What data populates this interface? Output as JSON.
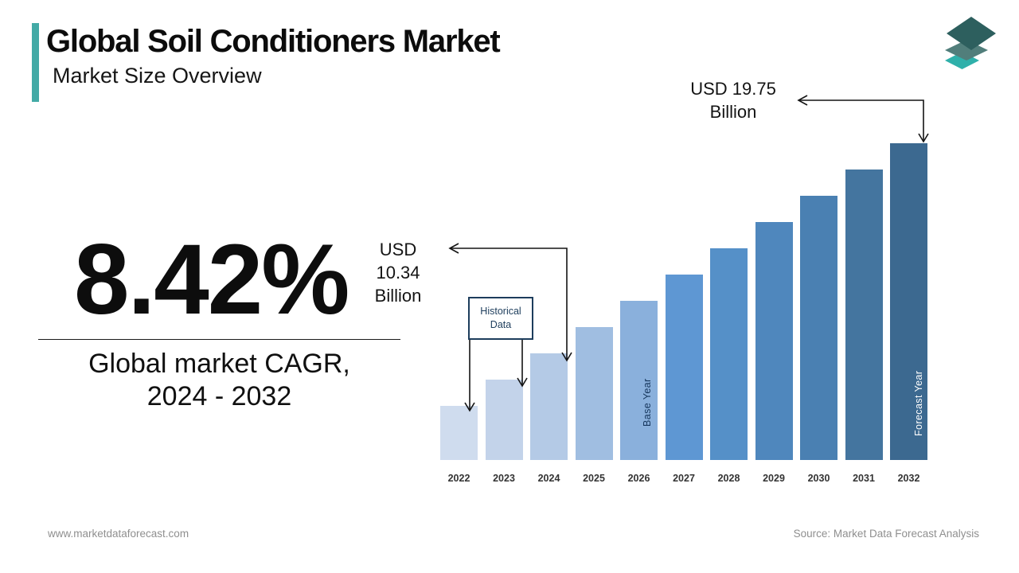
{
  "header": {
    "title": "Global Soil Conditioners Market",
    "subtitle": "Market Size Overview",
    "accent_color": "#43aaa6",
    "logo_layer_colors": [
      "#2fb0aa",
      "#517e7b",
      "#2d5f5e"
    ]
  },
  "stat": {
    "value": "8.42%",
    "caption": "Global market CAGR,\n2024 - 2032"
  },
  "chart_data": {
    "type": "bar",
    "title": "",
    "xlabel": "",
    "ylabel": "",
    "unit": "USD Billion",
    "grid": false,
    "legend": false,
    "categories": [
      "2022",
      "2023",
      "2024",
      "2025",
      "2026",
      "2027",
      "2028",
      "2029",
      "2030",
      "2031",
      "2032"
    ],
    "values": [
      7.99,
      9.16,
      10.34,
      11.52,
      12.69,
      13.87,
      15.04,
      16.22,
      17.4,
      18.57,
      19.75
    ],
    "values_note": "2024 (USD 10.34 Bn) and 2032 (USD 19.75 Bn) are labeled on the chart; other values estimated from bar heights",
    "bar_colors": [
      "#cfdcee",
      "#c3d3ea",
      "#b4cae6",
      "#a0bee1",
      "#8ab0dc",
      "#5e97d3",
      "#5590c8",
      "#4f87bd",
      "#4a80b2",
      "#44759f",
      "#3c6990"
    ],
    "annotations": {
      "value_2024": "USD\n10.34\nBillion",
      "value_2032": "USD 19.75\nBillion",
      "historical_box": "Historical\nData",
      "historical_categories": [
        "2022",
        "2023"
      ],
      "base_year_label": "Base Year",
      "base_year_category": "2026",
      "forecast_year_label": "Forecast Year",
      "forecast_year_category": "2032"
    }
  },
  "footer": {
    "website": "www.marketdataforecast.com",
    "source": "Source: Market Data Forecast Analysis"
  }
}
